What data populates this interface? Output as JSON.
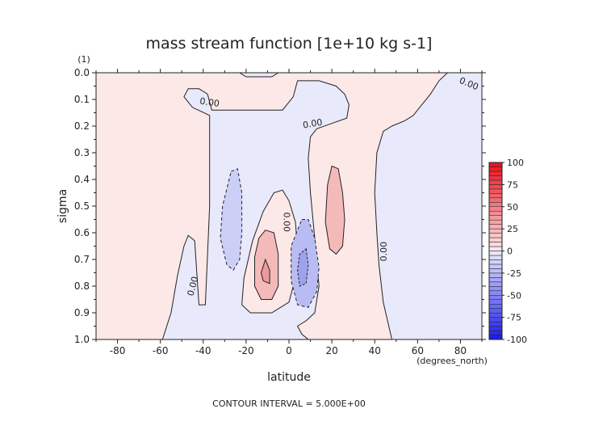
{
  "chart_data": {
    "type": "contour",
    "title": "mass stream function [1e+10 kg s-1]",
    "xlabel": "latitude",
    "x_unit": "(degrees_north)",
    "ylabel": "sigma",
    "y_unit": "(1)",
    "xlim": [
      -90,
      90
    ],
    "ylim": [
      1.0,
      0.0
    ],
    "x_ticks": [
      -80,
      -60,
      -40,
      -20,
      0,
      20,
      40,
      60,
      80
    ],
    "y_ticks": [
      0.0,
      0.1,
      0.2,
      0.3,
      0.4,
      0.5,
      0.6,
      0.7,
      0.8,
      0.9,
      1.0
    ],
    "contour_interval": 5.0,
    "contour_labels": [
      {
        "text": "0.00",
        "lat": -37,
        "sigma": 0.11,
        "rotate": 8
      },
      {
        "text": "0.00",
        "lat": 11,
        "sigma": 0.19,
        "rotate": -10
      },
      {
        "text": "0.00",
        "lat": 84,
        "sigma": 0.04,
        "rotate": 22
      },
      {
        "text": "0.00",
        "lat": -1,
        "sigma": 0.56,
        "rotate": 90
      },
      {
        "text": "0.00",
        "lat": 44,
        "sigma": 0.67,
        "rotate": -90
      },
      {
        "text": "0.00",
        "lat": -45,
        "sigma": 0.8,
        "rotate": -75
      }
    ],
    "colorbar": {
      "ticks": [
        100,
        75,
        50,
        25,
        0,
        -25,
        -50,
        -75,
        -100
      ],
      "range": [
        -100,
        100
      ],
      "levels": 40,
      "positive_color": "#e8101a",
      "negative_color": "#1a1ae8"
    },
    "regions": {
      "positive_fill": "#fde8e8",
      "negative_fill": "#e8eafc",
      "positive_mid": "#f4baba",
      "negative_mid": "#b8bcf2",
      "positive_core": "#ee9a9a",
      "negative_core": "#9ea2ec"
    },
    "footer": "CONTOUR INTERVAL = 5.000E+00",
    "grid": false
  }
}
